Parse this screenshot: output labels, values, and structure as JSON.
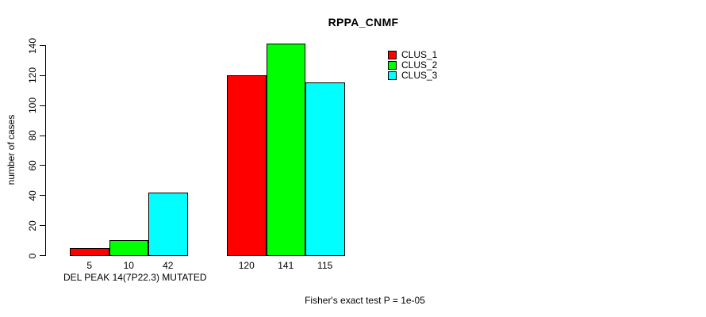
{
  "chart_data": {
    "type": "bar",
    "title": "RPPA_CNMF",
    "ylabel": "number of cases",
    "ylim": [
      0,
      140
    ],
    "yticks": [
      0,
      20,
      40,
      60,
      80,
      100,
      120,
      140
    ],
    "grid": false,
    "legend_position": "top-right",
    "legend": [
      {
        "name": "CLUS_1",
        "color": "#ff0000"
      },
      {
        "name": "CLUS_2",
        "color": "#00ff00"
      },
      {
        "name": "CLUS_3",
        "color": "#00ffff"
      }
    ],
    "categories": [
      "DEL PEAK 14(7P22.3) MUTATED",
      ""
    ],
    "groups": [
      {
        "label": "DEL PEAK 14(7P22.3) MUTATED",
        "values": [
          5,
          10,
          42
        ]
      },
      {
        "label": "",
        "values": [
          120,
          141,
          115
        ]
      }
    ],
    "bar_value_labels": [
      [
        "5",
        "10",
        "42"
      ],
      [
        "120",
        "141",
        "115"
      ]
    ],
    "footnote": "Fisher's exact test P = 1e-05"
  }
}
